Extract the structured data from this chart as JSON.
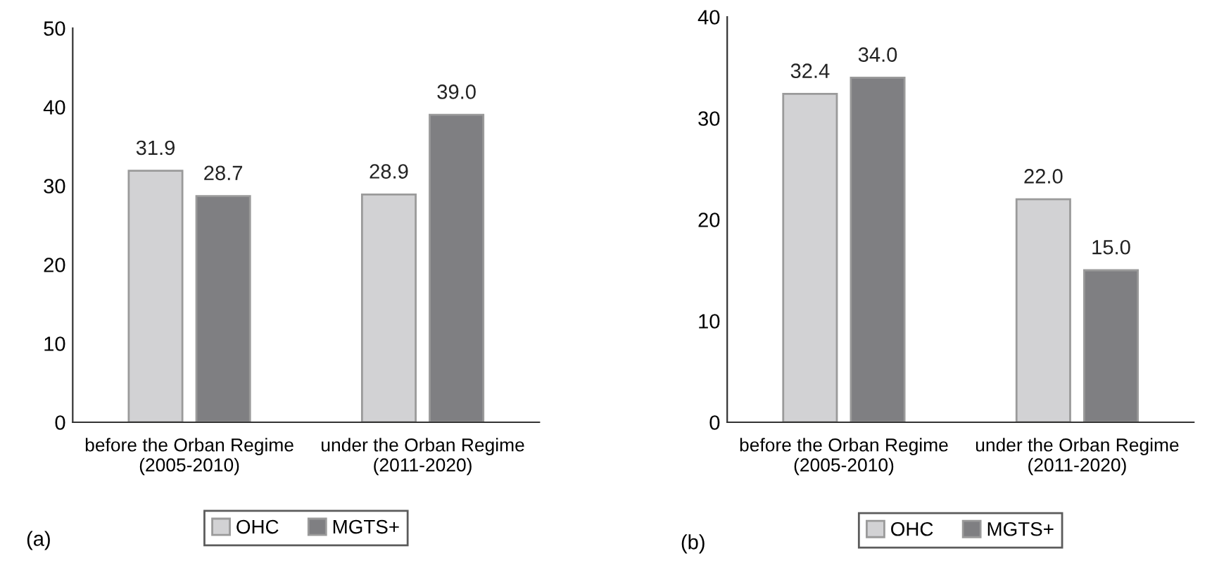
{
  "chart_data": [
    {
      "type": "bar",
      "categories": [
        "before the Orban Regime\n(2005-2010)",
        "under the Orban Regime\n(2011-2020)"
      ],
      "series": [
        {
          "name": "OHC",
          "color": "#d2d2d4",
          "values": [
            31.9,
            28.9
          ],
          "value_labels": [
            "31.9",
            "28.9"
          ]
        },
        {
          "name": "MGTS+",
          "color": "#7f7f82",
          "values": [
            28.7,
            39.0
          ],
          "value_labels": [
            "28.7",
            "39.0"
          ]
        }
      ],
      "ylim": [
        0,
        50
      ],
      "yticks": [
        0,
        10,
        20,
        30,
        40,
        50
      ],
      "legend": "bottom",
      "annotations": [
        "(a)"
      ]
    },
    {
      "type": "bar",
      "categories": [
        "before the Orban Regime\n(2005-2010)",
        "under the Orban Regime\n(2011-2020)"
      ],
      "series": [
        {
          "name": "OHC",
          "color": "#d2d2d4",
          "values": [
            32.4,
            22.0
          ],
          "value_labels": [
            "32.4",
            "22.0"
          ]
        },
        {
          "name": "MGTS+",
          "color": "#7f7f82",
          "values": [
            34.0,
            15.0
          ],
          "value_labels": [
            "34.0",
            "15.0"
          ]
        }
      ],
      "ylim": [
        0,
        40
      ],
      "yticks": [
        0,
        10,
        20,
        30,
        40
      ],
      "legend": "bottom",
      "annotations": [
        "(b)"
      ]
    }
  ]
}
